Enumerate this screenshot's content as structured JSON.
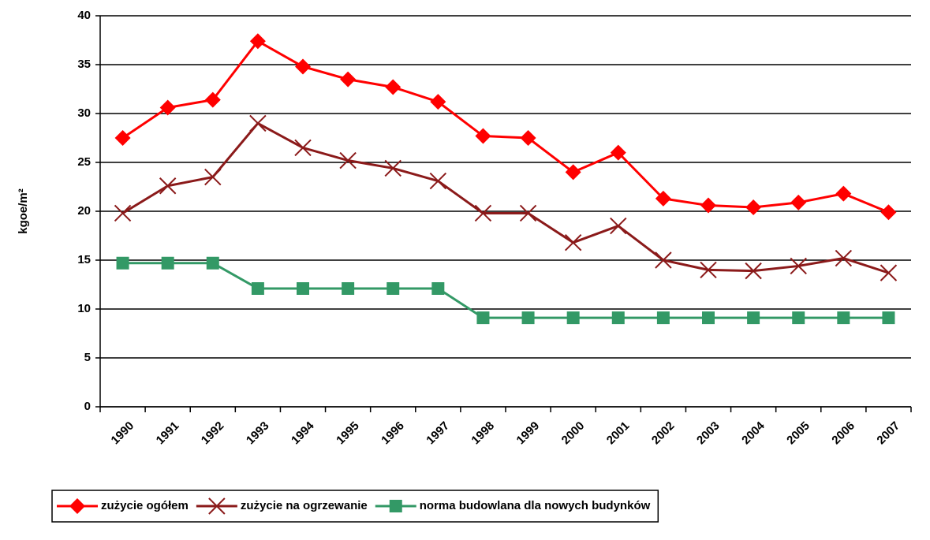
{
  "chart_data": {
    "type": "line",
    "ylabel": "kgoe/m²",
    "categories": [
      "1990",
      "1991",
      "1992",
      "1993",
      "1994",
      "1995",
      "1996",
      "1997",
      "1998",
      "1999",
      "2000",
      "2001",
      "2002",
      "2003",
      "2004",
      "2005",
      "2006",
      "2007"
    ],
    "series": [
      {
        "name": "zużycie ogółem",
        "color": "#ff0000",
        "marker": "diamond",
        "values": [
          27.5,
          30.6,
          31.4,
          37.4,
          34.8,
          33.5,
          32.7,
          31.2,
          27.7,
          27.5,
          24.0,
          26.0,
          21.3,
          20.6,
          20.4,
          20.9,
          21.8,
          19.9
        ]
      },
      {
        "name": "zużycie na ogrzewanie",
        "color": "#8b1a1a",
        "marker": "x",
        "values": [
          19.8,
          22.6,
          23.5,
          29.0,
          26.5,
          25.2,
          24.4,
          23.1,
          19.8,
          19.8,
          16.8,
          18.5,
          15.0,
          14.0,
          13.9,
          14.4,
          15.2,
          13.7
        ]
      },
      {
        "name": "norma budowlana dla nowych budynków",
        "color": "#339966",
        "marker": "square",
        "values": [
          14.7,
          14.7,
          14.7,
          12.1,
          12.1,
          12.1,
          12.1,
          12.1,
          9.1,
          9.1,
          9.1,
          9.1,
          9.1,
          9.1,
          9.1,
          9.1,
          9.1,
          9.1
        ]
      }
    ],
    "ylim": [
      0,
      40
    ],
    "yticks": [
      0,
      5,
      10,
      15,
      20,
      25,
      30,
      35,
      40
    ],
    "grid": true,
    "legend": "bottom"
  }
}
